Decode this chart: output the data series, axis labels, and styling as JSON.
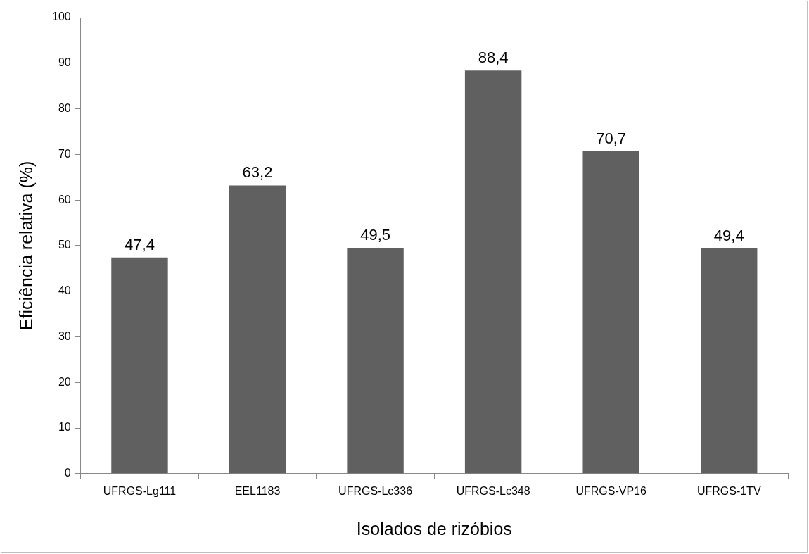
{
  "chart_data": {
    "type": "bar",
    "xlabel": "Isolados de rizóbios",
    "ylabel": "Eficiência relativa (%)",
    "categories": [
      "UFRGS-Lg111",
      "EEL1183",
      "UFRGS-Lc336",
      "UFRGS-Lc348",
      "UFRGS-VP16",
      "UFRGS-1TV"
    ],
    "values": [
      47.4,
      63.2,
      49.5,
      88.4,
      70.7,
      49.4
    ],
    "value_labels": [
      "47,4",
      "63,2",
      "49,5",
      "88,4",
      "70,7",
      "49,4"
    ],
    "color": "#606060",
    "ylim": [
      0,
      100
    ],
    "yticks": [
      0,
      10,
      20,
      30,
      40,
      50,
      60,
      70,
      80,
      90,
      100
    ],
    "grid": false,
    "legend": false
  }
}
